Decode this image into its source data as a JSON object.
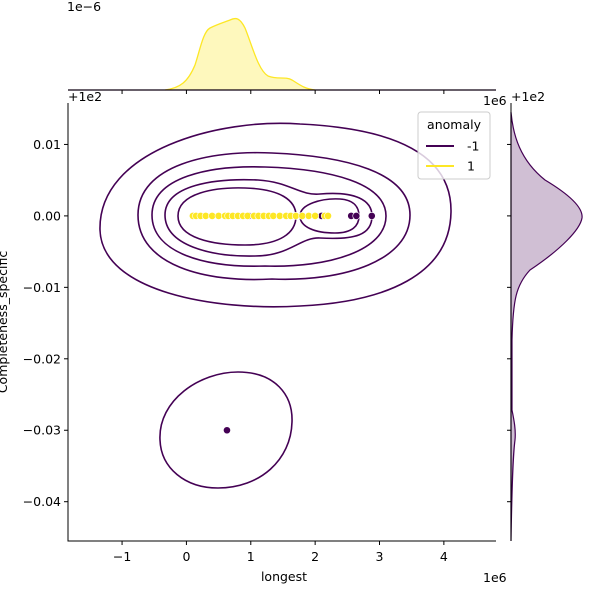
{
  "chart_data": {
    "type": "scatter",
    "x_label": "longest",
    "y_label": "Completeness_specific",
    "x_offset": "1e6",
    "y_offset": "+1e2",
    "density_offset": "1e−6",
    "legend_title": "anomaly",
    "legend": "upper right",
    "xlim": [
      -1.84,
      4.81
    ],
    "ylim": [
      -0.0455,
      0.0158
    ],
    "xticks": [
      {
        "value": -1,
        "label": "−1"
      },
      0,
      1,
      2,
      3,
      4
    ],
    "yticks": [
      {
        "value": 0.01,
        "label": "0.01"
      },
      {
        "value": 0,
        "label": "0.00"
      },
      {
        "value": -0.01,
        "label": "−0.01"
      },
      {
        "value": -0.02,
        "label": "−0.02"
      },
      {
        "value": -0.03,
        "label": "−0.03"
      },
      {
        "value": -0.04,
        "label": "−0.04"
      }
    ],
    "series": [
      {
        "name": "-1",
        "color": "#440154",
        "x": [
          0.1,
          0.97,
          2.1,
          2.56,
          2.64,
          2.88,
          0.63
        ],
        "values": [
          0,
          0,
          0,
          0,
          0,
          0,
          -0.03
        ]
      },
      {
        "name": "1",
        "color": "#fde725",
        "x": [
          0.1,
          0.15,
          0.22,
          0.3,
          0.4,
          0.5,
          0.6,
          0.65,
          0.72,
          0.8,
          0.88,
          0.95,
          1.05,
          1.12,
          1.2,
          1.28,
          1.35,
          1.45,
          1.55,
          1.62,
          1.7,
          1.8,
          1.9,
          2.0,
          2.15,
          2.2
        ],
        "values": [
          0,
          0,
          0,
          0,
          0,
          0,
          0,
          0,
          0,
          0,
          0,
          0,
          0,
          0,
          0,
          0,
          0,
          0,
          0,
          0,
          0,
          0,
          0,
          0,
          0,
          0
        ]
      }
    ]
  }
}
